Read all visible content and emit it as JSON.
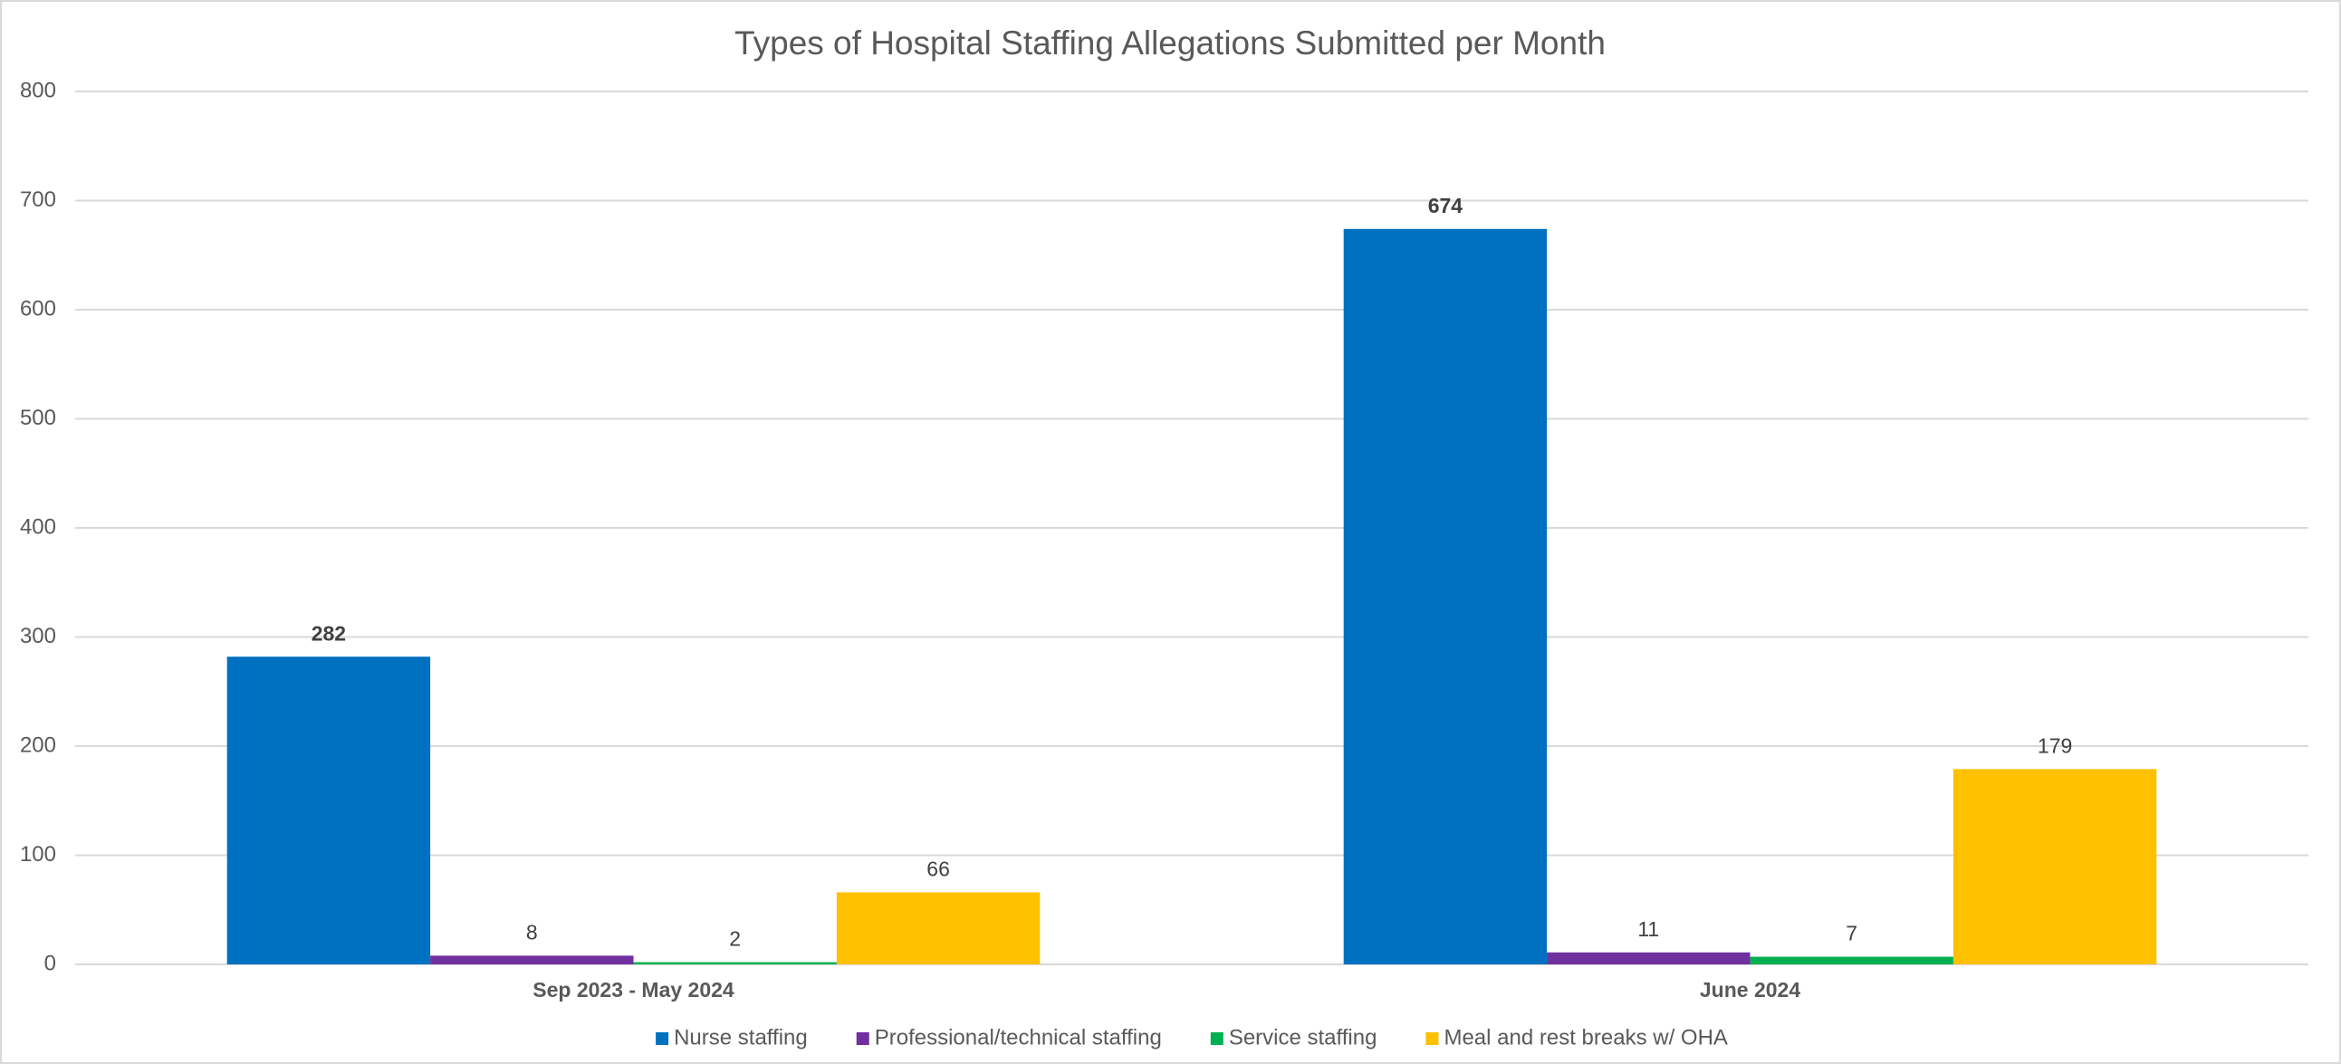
{
  "chart_data": {
    "type": "bar",
    "title": "Types of Hospital Staffing Allegations Submitted per Month",
    "categories": [
      "Sep 2023 - May 2024",
      "June 2024"
    ],
    "series": [
      {
        "name": "Nurse staffing",
        "color": "#0070c0",
        "values": [
          282,
          674
        ]
      },
      {
        "name": "Professional/technical staffing",
        "color": "#7030a0",
        "values": [
          8,
          11
        ]
      },
      {
        "name": "Service staffing",
        "color": "#00b050",
        "values": [
          2,
          7
        ]
      },
      {
        "name": "Meal and rest breaks w/ OHA",
        "color": "#ffc000",
        "values": [
          66,
          179
        ]
      }
    ],
    "ylim": [
      0,
      800
    ],
    "yticks": [
      0,
      100,
      200,
      300,
      400,
      500,
      600,
      700,
      800
    ],
    "grid": true,
    "legend": "bottom"
  }
}
